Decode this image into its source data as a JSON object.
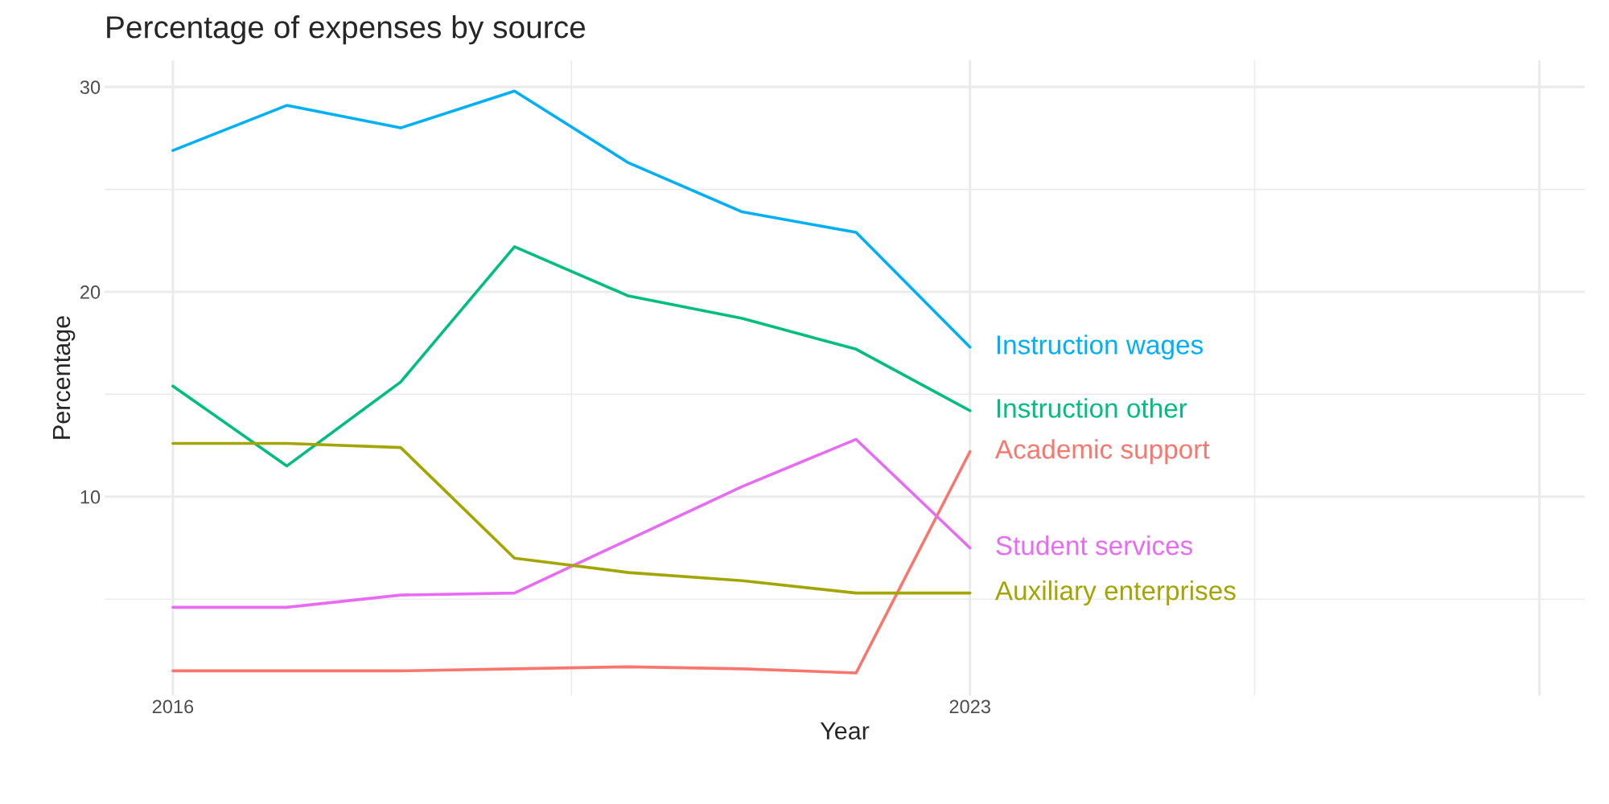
{
  "chart_data": {
    "type": "line",
    "title": "Percentage of expenses by source",
    "xlabel": "Year",
    "ylabel": "Percentage",
    "x": [
      2016,
      2017,
      2018,
      2019,
      2020,
      2021,
      2022,
      2023
    ],
    "series": [
      {
        "name": "Instruction wages",
        "color": "#00b0f6",
        "values": [
          26.9,
          29.1,
          28.0,
          29.8,
          26.3,
          23.9,
          22.9,
          17.3
        ]
      },
      {
        "name": "Instruction other",
        "color": "#00bf7d",
        "values": [
          15.4,
          11.5,
          15.6,
          22.2,
          19.8,
          18.7,
          17.2,
          14.2
        ]
      },
      {
        "name": "Academic support",
        "color": "#f8766d",
        "values": [
          1.5,
          1.5,
          1.5,
          1.6,
          1.7,
          1.6,
          1.4,
          12.2
        ]
      },
      {
        "name": "Student services",
        "color": "#e76bf3",
        "values": [
          4.6,
          4.6,
          5.2,
          5.3,
          7.9,
          10.5,
          12.8,
          7.5
        ]
      },
      {
        "name": "Auxiliary enterprises",
        "color": "#a3a500",
        "values": [
          12.6,
          12.6,
          12.4,
          7.0,
          6.3,
          5.9,
          5.3,
          5.3
        ]
      }
    ],
    "xlim": [
      2015.4,
      2028.4
    ],
    "xticks": [
      2016,
      2023,
      {
        "value": 2028,
        "label": null
      }
    ],
    "ylim": [
      0.3,
      31.3
    ],
    "yticks": [
      10,
      20,
      30
    ],
    "grid": true,
    "legend": false,
    "line_style": "solid",
    "marker": "none"
  }
}
